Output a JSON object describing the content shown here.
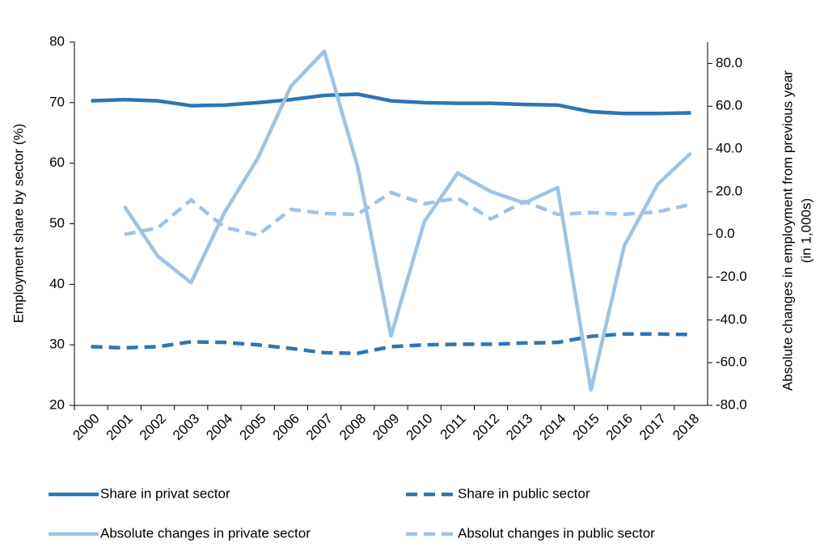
{
  "chart_data": {
    "type": "line",
    "ylabel": "Employment share by sector  (%)",
    "y2label": [
      "Absolute changes in employment from previous year",
      "(in 1,000s)"
    ],
    "categories": [
      "2000",
      "2001",
      "2002",
      "2003",
      "2004",
      "2005",
      "2006",
      "2007",
      "2008",
      "2009",
      "2010",
      "2011",
      "2012",
      "2013",
      "2014",
      "2015",
      "2016",
      "2017",
      "2018"
    ],
    "ylim": [
      20,
      80
    ],
    "yticks": [
      20,
      30,
      40,
      50,
      60,
      70,
      80
    ],
    "y2lim": [
      -80,
      90
    ],
    "y2ticks": [
      {
        "value": -80,
        "label": "-80.0"
      },
      {
        "value": -60,
        "label": "-60.0"
      },
      {
        "value": -40,
        "label": "-40.0"
      },
      {
        "value": -20,
        "label": "-20.0"
      },
      {
        "value": 0,
        "label": "0.0"
      },
      {
        "value": 20,
        "label": "20.0"
      },
      {
        "value": 40,
        "label": "40.0"
      },
      {
        "value": 60,
        "label": "60.0"
      },
      {
        "value": 80,
        "label": "80.0"
      }
    ],
    "series": [
      {
        "name": "Share in privat sector",
        "color": "#2e75b6",
        "dashed": false,
        "axis": "y",
        "values": [
          70.3,
          70.5,
          70.3,
          69.5,
          69.6,
          70.0,
          70.5,
          71.2,
          71.4,
          70.3,
          70.0,
          69.9,
          69.9,
          69.7,
          69.6,
          68.5,
          68.2,
          68.2,
          68.3
        ]
      },
      {
        "name": "Share in public sector",
        "color": "#2e75b6",
        "dashed": true,
        "axis": "y",
        "values": [
          29.7,
          29.5,
          29.7,
          30.5,
          30.4,
          30.0,
          29.4,
          28.7,
          28.6,
          29.7,
          30.0,
          30.1,
          30.1,
          30.3,
          30.4,
          31.4,
          31.8,
          31.8,
          31.7
        ]
      },
      {
        "name": "Absolute changes in private sector",
        "color": "#9dc3e6",
        "dashed": false,
        "axis": "y2",
        "values": [
          null,
          13.2,
          -10.2,
          -22.6,
          10.2,
          35.5,
          69.4,
          85.7,
          31.7,
          -47.5,
          6.0,
          28.7,
          20.0,
          14.7,
          21.9,
          -72.8,
          -5.3,
          23.4,
          38.1
        ]
      },
      {
        "name": "Absolut changes in public sector",
        "color": "#9dc3e6",
        "dashed": true,
        "axis": "y2",
        "values": [
          null,
          0.0,
          3.0,
          16.2,
          3.4,
          -0.4,
          11.7,
          9.8,
          9.4,
          19.6,
          14.3,
          17.0,
          7.2,
          15.5,
          9.4,
          10.2,
          9.4,
          10.6,
          14.0
        ]
      }
    ]
  }
}
